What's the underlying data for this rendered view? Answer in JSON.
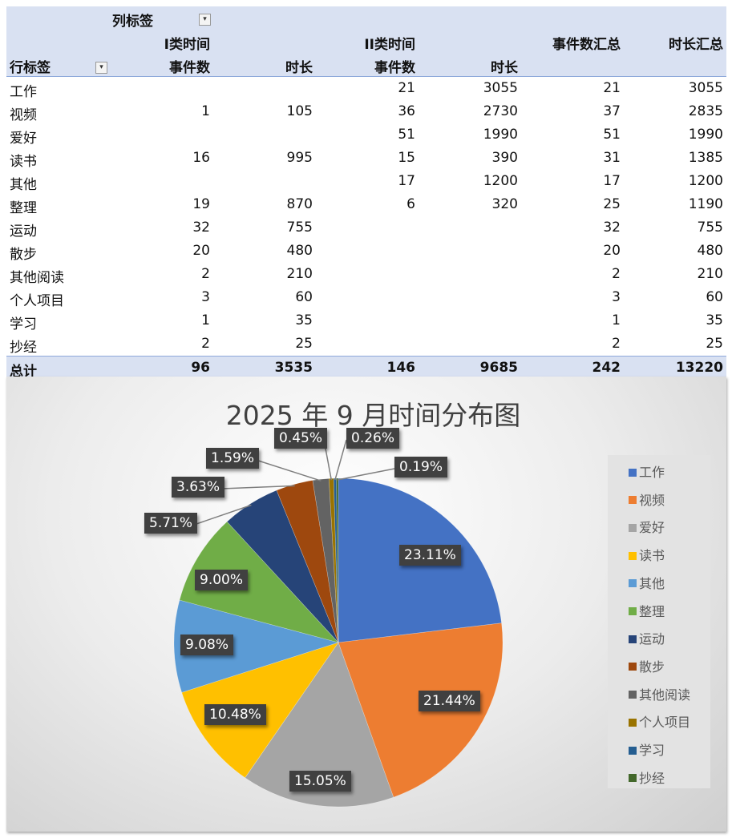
{
  "pivot": {
    "column_labels_title": "列标签",
    "row_labels_title": "行标签",
    "groups": [
      "I类时间",
      "II类时间"
    ],
    "sub_headers": [
      "事件数",
      "时长",
      "事件数",
      "时长"
    ],
    "total_headers": [
      "事件数汇总",
      "时长汇总"
    ],
    "filter_icon": "▾",
    "rows": [
      {
        "label": "工作",
        "c1": "",
        "c2": "",
        "c3": "21",
        "c4": "3055",
        "c5": "21",
        "c6": "3055"
      },
      {
        "label": "视频",
        "c1": "1",
        "c2": "105",
        "c3": "36",
        "c4": "2730",
        "c5": "37",
        "c6": "2835"
      },
      {
        "label": "爱好",
        "c1": "",
        "c2": "",
        "c3": "51",
        "c4": "1990",
        "c5": "51",
        "c6": "1990"
      },
      {
        "label": "读书",
        "c1": "16",
        "c2": "995",
        "c3": "15",
        "c4": "390",
        "c5": "31",
        "c6": "1385"
      },
      {
        "label": "其他",
        "c1": "",
        "c2": "",
        "c3": "17",
        "c4": "1200",
        "c5": "17",
        "c6": "1200"
      },
      {
        "label": "整理",
        "c1": "19",
        "c2": "870",
        "c3": "6",
        "c4": "320",
        "c5": "25",
        "c6": "1190"
      },
      {
        "label": "运动",
        "c1": "32",
        "c2": "755",
        "c3": "",
        "c4": "",
        "c5": "32",
        "c6": "755"
      },
      {
        "label": "散步",
        "c1": "20",
        "c2": "480",
        "c3": "",
        "c4": "",
        "c5": "20",
        "c6": "480"
      },
      {
        "label": "其他阅读",
        "c1": "2",
        "c2": "210",
        "c3": "",
        "c4": "",
        "c5": "2",
        "c6": "210"
      },
      {
        "label": "个人项目",
        "c1": "3",
        "c2": "60",
        "c3": "",
        "c4": "",
        "c5": "3",
        "c6": "60"
      },
      {
        "label": "学习",
        "c1": "1",
        "c2": "35",
        "c3": "",
        "c4": "",
        "c5": "1",
        "c6": "35"
      },
      {
        "label": "抄经",
        "c1": "2",
        "c2": "25",
        "c3": "",
        "c4": "",
        "c5": "2",
        "c6": "25"
      }
    ],
    "total": {
      "label": "总计",
      "c1": "96",
      "c2": "3535",
      "c3": "146",
      "c4": "9685",
      "c5": "242",
      "c6": "13220"
    }
  },
  "chart_data": {
    "type": "pie",
    "title": "2025 年 9 月时间分布图",
    "categories": [
      "工作",
      "视频",
      "爱好",
      "读书",
      "其他",
      "整理",
      "运动",
      "散步",
      "其他阅读",
      "个人项目",
      "学习",
      "抄经"
    ],
    "values": [
      3055,
      2835,
      1990,
      1385,
      1200,
      1190,
      755,
      480,
      210,
      60,
      35,
      25
    ],
    "labels": [
      "23.11%",
      "21.44%",
      "15.05%",
      "10.48%",
      "9.08%",
      "9.00%",
      "5.71%",
      "3.63%",
      "1.59%",
      "0.45%",
      "0.26%",
      "0.19%"
    ],
    "colors": [
      "#4472c4",
      "#ed7d31",
      "#a5a5a5",
      "#ffc000",
      "#5b9bd5",
      "#70ad47",
      "#264478",
      "#9e480e",
      "#636363",
      "#997300",
      "#255e91",
      "#43682b"
    ],
    "legend_position": "right"
  }
}
